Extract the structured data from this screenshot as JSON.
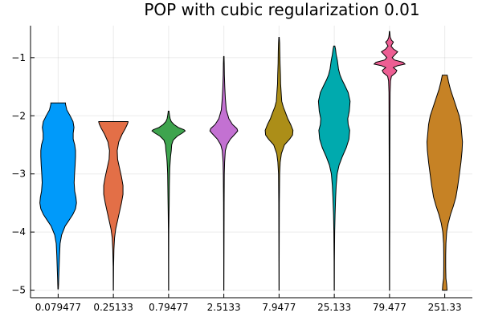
{
  "chart_data": {
    "type": "violin",
    "title": "POP with cubic regularization 0.01",
    "xlabel": "",
    "ylabel": "",
    "categories": [
      "0.079477",
      "0.25133",
      "0.79477",
      "2.5133",
      "7.9477",
      "25.133",
      "79.477",
      "251.33"
    ],
    "ylim": [
      -5.13,
      -0.45
    ],
    "yticks": [
      -5,
      -4,
      -3,
      -2,
      -1
    ],
    "ytick_labels": [
      "−5",
      "−4",
      "−3",
      "−2",
      "−1"
    ],
    "grid": true,
    "legend": "none",
    "colors": [
      "#009AFA",
      "#E36F47",
      "#3EA44E",
      "#C371D2",
      "#AC8E18",
      "#00AAAE",
      "#ED5E93",
      "#C68225"
    ],
    "violins": [
      {
        "name": "0.079477",
        "profile": [
          [
            -4.98,
            0.01
          ],
          [
            -4.9,
            0.02
          ],
          [
            -4.8,
            0.03
          ],
          [
            -4.6,
            0.05
          ],
          [
            -4.4,
            0.07
          ],
          [
            -4.2,
            0.1
          ],
          [
            -4.05,
            0.18
          ],
          [
            -3.9,
            0.36
          ],
          [
            -3.8,
            0.56
          ],
          [
            -3.7,
            0.76
          ],
          [
            -3.6,
            0.9
          ],
          [
            -3.5,
            0.95
          ],
          [
            -3.4,
            0.92
          ],
          [
            -3.3,
            0.86
          ],
          [
            -3.15,
            0.83
          ],
          [
            -3.0,
            0.85
          ],
          [
            -2.85,
            0.88
          ],
          [
            -2.7,
            0.9
          ],
          [
            -2.6,
            0.9
          ],
          [
            -2.5,
            0.86
          ],
          [
            -2.4,
            0.78
          ],
          [
            -2.3,
            0.78
          ],
          [
            -2.2,
            0.82
          ],
          [
            -2.1,
            0.77
          ],
          [
            -2.0,
            0.62
          ],
          [
            -1.9,
            0.45
          ],
          [
            -1.8,
            0.38
          ],
          [
            -1.78,
            0.38
          ]
        ]
      },
      {
        "name": "0.25133",
        "profile": [
          [
            -5.0,
            0.004
          ],
          [
            -4.6,
            0.01
          ],
          [
            -4.3,
            0.03
          ],
          [
            -4.1,
            0.06
          ],
          [
            -3.95,
            0.12
          ],
          [
            -3.8,
            0.22
          ],
          [
            -3.65,
            0.32
          ],
          [
            -3.5,
            0.42
          ],
          [
            -3.35,
            0.5
          ],
          [
            -3.2,
            0.5
          ],
          [
            -3.05,
            0.42
          ],
          [
            -2.9,
            0.32
          ],
          [
            -2.75,
            0.22
          ],
          [
            -2.6,
            0.2
          ],
          [
            -2.45,
            0.28
          ],
          [
            -2.32,
            0.45
          ],
          [
            -2.22,
            0.62
          ],
          [
            -2.15,
            0.72
          ],
          [
            -2.11,
            0.76
          ],
          [
            -2.1,
            0.76
          ]
        ]
      },
      {
        "name": "0.79477",
        "profile": [
          [
            -5.0,
            0.004
          ],
          [
            -4.5,
            0.006
          ],
          [
            -4.0,
            0.01
          ],
          [
            -3.7,
            0.02
          ],
          [
            -3.5,
            0.03
          ],
          [
            -3.2,
            0.04
          ],
          [
            -3.0,
            0.05
          ],
          [
            -2.9,
            0.06
          ],
          [
            -2.8,
            0.08
          ],
          [
            -2.7,
            0.1
          ],
          [
            -2.6,
            0.14
          ],
          [
            -2.5,
            0.16
          ],
          [
            -2.42,
            0.24
          ],
          [
            -2.35,
            0.45
          ],
          [
            -2.3,
            0.7
          ],
          [
            -2.26,
            0.86
          ],
          [
            -2.24,
            0.8
          ],
          [
            -2.2,
            0.5
          ],
          [
            -2.15,
            0.28
          ],
          [
            -2.1,
            0.14
          ],
          [
            -2.05,
            0.08
          ],
          [
            -2.0,
            0.05
          ],
          [
            -1.95,
            0.03
          ],
          [
            -1.92,
            0.02
          ]
        ]
      },
      {
        "name": "2.5133",
        "profile": [
          [
            -5.0,
            0.004
          ],
          [
            -4.5,
            0.006
          ],
          [
            -4.0,
            0.01
          ],
          [
            -3.5,
            0.015
          ],
          [
            -3.0,
            0.025
          ],
          [
            -2.8,
            0.04
          ],
          [
            -2.6,
            0.08
          ],
          [
            -2.5,
            0.16
          ],
          [
            -2.4,
            0.34
          ],
          [
            -2.3,
            0.62
          ],
          [
            -2.26,
            0.72
          ],
          [
            -2.22,
            0.68
          ],
          [
            -2.15,
            0.45
          ],
          [
            -2.05,
            0.26
          ],
          [
            -1.9,
            0.13
          ],
          [
            -1.7,
            0.08
          ],
          [
            -1.5,
            0.05
          ],
          [
            -1.3,
            0.03
          ],
          [
            -1.1,
            0.02
          ],
          [
            -0.98,
            0.01
          ]
        ]
      },
      {
        "name": "7.9477",
        "profile": [
          [
            -5.0,
            0.004
          ],
          [
            -4.5,
            0.006
          ],
          [
            -4.0,
            0.01
          ],
          [
            -3.5,
            0.015
          ],
          [
            -3.0,
            0.03
          ],
          [
            -2.8,
            0.06
          ],
          [
            -2.65,
            0.12
          ],
          [
            -2.5,
            0.28
          ],
          [
            -2.4,
            0.55
          ],
          [
            -2.33,
            0.7
          ],
          [
            -2.25,
            0.72
          ],
          [
            -2.15,
            0.6
          ],
          [
            -2.05,
            0.45
          ],
          [
            -1.95,
            0.34
          ],
          [
            -1.85,
            0.22
          ],
          [
            -1.75,
            0.14
          ],
          [
            -1.6,
            0.11
          ],
          [
            -1.45,
            0.08
          ],
          [
            -1.3,
            0.07
          ],
          [
            -1.1,
            0.05
          ],
          [
            -0.9,
            0.04
          ],
          [
            -0.75,
            0.03
          ],
          [
            -0.65,
            0.01
          ]
        ]
      },
      {
        "name": "25.133",
        "profile": [
          [
            -5.0,
            0.004
          ],
          [
            -4.5,
            0.008
          ],
          [
            -4.0,
            0.02
          ],
          [
            -3.7,
            0.04
          ],
          [
            -3.4,
            0.07
          ],
          [
            -3.2,
            0.1
          ],
          [
            -3.0,
            0.15
          ],
          [
            -2.85,
            0.25
          ],
          [
            -2.7,
            0.42
          ],
          [
            -2.55,
            0.62
          ],
          [
            -2.4,
            0.76
          ],
          [
            -2.25,
            0.8
          ],
          [
            -2.15,
            0.72
          ],
          [
            -2.05,
            0.7
          ],
          [
            -1.92,
            0.78
          ],
          [
            -1.75,
            0.82
          ],
          [
            -1.6,
            0.72
          ],
          [
            -1.48,
            0.55
          ],
          [
            -1.38,
            0.4
          ],
          [
            -1.3,
            0.3
          ],
          [
            -1.2,
            0.22
          ],
          [
            -1.05,
            0.16
          ],
          [
            -0.95,
            0.1
          ],
          [
            -0.85,
            0.06
          ],
          [
            -0.8,
            0.03
          ]
        ]
      },
      {
        "name": "79.477",
        "profile": [
          [
            -5.0,
            0.004
          ],
          [
            -4.5,
            0.006
          ],
          [
            -4.0,
            0.01
          ],
          [
            -3.5,
            0.012
          ],
          [
            -3.0,
            0.015
          ],
          [
            -2.5,
            0.018
          ],
          [
            -2.0,
            0.022
          ],
          [
            -1.6,
            0.03
          ],
          [
            -1.4,
            0.05
          ],
          [
            -1.32,
            0.1
          ],
          [
            -1.26,
            0.32
          ],
          [
            -1.22,
            0.38
          ],
          [
            -1.17,
            0.2
          ],
          [
            -1.14,
            0.4
          ],
          [
            -1.11,
            0.8
          ],
          [
            -1.08,
            0.7
          ],
          [
            -1.04,
            0.25
          ],
          [
            -1.0,
            0.14
          ],
          [
            -0.95,
            0.28
          ],
          [
            -0.9,
            0.42
          ],
          [
            -0.85,
            0.2
          ],
          [
            -0.8,
            0.08
          ],
          [
            -0.76,
            0.15
          ],
          [
            -0.73,
            0.2
          ],
          [
            -0.7,
            0.1
          ],
          [
            -0.65,
            0.04
          ],
          [
            -0.6,
            0.02
          ],
          [
            -0.55,
            0.01
          ]
        ]
      },
      {
        "name": "251.33",
        "profile": [
          [
            -5.0,
            0.12
          ],
          [
            -4.9,
            0.1
          ],
          [
            -4.8,
            0.06
          ],
          [
            -4.6,
            0.05
          ],
          [
            -4.4,
            0.05
          ],
          [
            -4.2,
            0.06
          ],
          [
            -4.0,
            0.1
          ],
          [
            -3.85,
            0.18
          ],
          [
            -3.7,
            0.3
          ],
          [
            -3.55,
            0.45
          ],
          [
            -3.4,
            0.58
          ],
          [
            -3.2,
            0.68
          ],
          [
            -3.0,
            0.76
          ],
          [
            -2.8,
            0.84
          ],
          [
            -2.6,
            0.9
          ],
          [
            -2.45,
            0.92
          ],
          [
            -2.3,
            0.88
          ],
          [
            -2.15,
            0.84
          ],
          [
            -2.0,
            0.75
          ],
          [
            -1.85,
            0.6
          ],
          [
            -1.7,
            0.45
          ],
          [
            -1.55,
            0.3
          ],
          [
            -1.42,
            0.2
          ],
          [
            -1.32,
            0.14
          ],
          [
            -1.3,
            0.13
          ]
        ]
      }
    ]
  }
}
